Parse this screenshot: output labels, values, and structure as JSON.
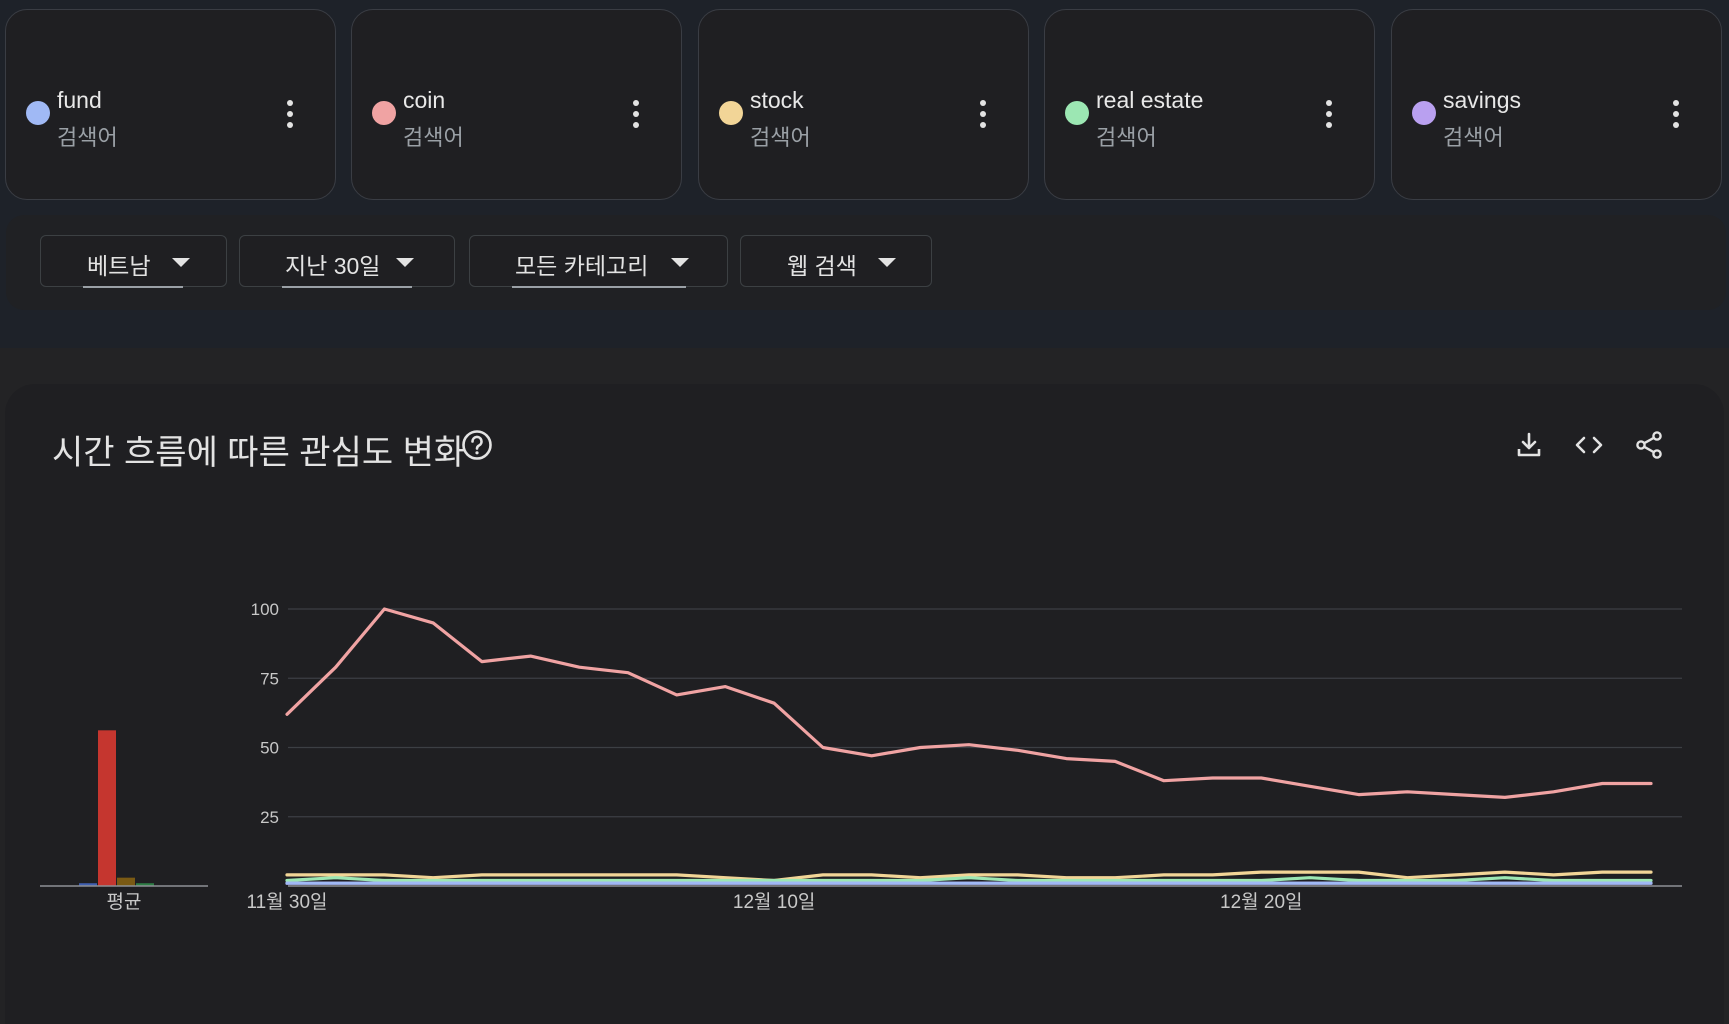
{
  "terms": [
    {
      "name": "fund",
      "sub": "검색어",
      "color": "#a0b9f5"
    },
    {
      "name": "coin",
      "sub": "검색어",
      "color": "#f0a3a3"
    },
    {
      "name": "stock",
      "sub": "검색어",
      "color": "#f2d597"
    },
    {
      "name": "real estate",
      "sub": "검색어",
      "color": "#9ce7b3"
    },
    {
      "name": "savings",
      "sub": "검색어",
      "color": "#b9a0f0"
    }
  ],
  "filters": {
    "region": "베트남",
    "time": "지난 30일",
    "category": "모든 카테고리",
    "search_type": "웹 검색"
  },
  "chart_header": {
    "title": "시간 흐름에 따른 관심도 변화",
    "help_icon": "help-circle-icon",
    "actions": [
      "download-icon",
      "embed-code-icon",
      "share-icon"
    ]
  },
  "chart_data": [
    {
      "type": "bar",
      "categories": [
        "fund",
        "coin",
        "stock",
        "real estate",
        "savings"
      ],
      "values": [
        1,
        56,
        3,
        1,
        0
      ],
      "colors": [
        "#3f5fb0",
        "#c5362f",
        "#7a5a14",
        "#2e7d45",
        "#5b3f99"
      ],
      "xlabel": "평균",
      "ylim": [
        0,
        100
      ]
    },
    {
      "type": "line",
      "x": [
        "11월 30일",
        "12월 1일",
        "12월 2일",
        "12월 3일",
        "12월 4일",
        "12월 5일",
        "12월 6일",
        "12월 7일",
        "12월 8일",
        "12월 9일",
        "12월 10일",
        "12월 11일",
        "12월 12일",
        "12월 13일",
        "12월 14일",
        "12월 15일",
        "12월 16일",
        "12월 17일",
        "12월 18일",
        "12월 19일",
        "12월 20일",
        "12월 21일",
        "12월 22일",
        "12월 23일",
        "12월 24일",
        "12월 25일",
        "12월 26일",
        "12월 27일",
        "12월 28일"
      ],
      "x_tick_labels": [
        "11월 30일",
        "12월 10일",
        "12월 20일"
      ],
      "y_ticks": [
        25,
        50,
        75,
        100
      ],
      "ylim": [
        0,
        100
      ],
      "grid": true,
      "series": [
        {
          "name": "fund",
          "color": "#a0b9f5",
          "values": [
            1,
            1,
            1,
            1,
            1,
            1,
            1,
            1,
            1,
            1,
            1,
            1,
            1,
            1,
            1,
            1,
            1,
            1,
            1,
            1,
            1,
            1,
            1,
            1,
            1,
            1,
            1,
            1,
            1
          ]
        },
        {
          "name": "coin",
          "color": "#f0a3a3",
          "values": [
            62,
            79,
            100,
            95,
            81,
            83,
            79,
            77,
            69,
            72,
            66,
            50,
            47,
            50,
            51,
            49,
            46,
            45,
            38,
            39,
            39,
            36,
            33,
            34,
            33,
            32,
            34,
            37,
            37
          ]
        },
        {
          "name": "stock",
          "color": "#f2d597",
          "values": [
            4,
            4,
            4,
            3,
            4,
            4,
            4,
            4,
            4,
            3,
            2,
            4,
            4,
            3,
            4,
            4,
            3,
            3,
            4,
            4,
            5,
            5,
            5,
            3,
            4,
            5,
            4,
            5,
            5
          ]
        },
        {
          "name": "real estate",
          "color": "#9ce7b3",
          "values": [
            2,
            3,
            2,
            2,
            2,
            2,
            2,
            2,
            2,
            2,
            2,
            2,
            2,
            2,
            3,
            2,
            2,
            2,
            2,
            2,
            2,
            3,
            2,
            2,
            2,
            3,
            2,
            2,
            2
          ]
        },
        {
          "name": "savings",
          "color": "#b9a0f0",
          "values": [
            1,
            1,
            1,
            1,
            1,
            1,
            1,
            1,
            1,
            1,
            1,
            1,
            1,
            1,
            1,
            1,
            1,
            1,
            1,
            1,
            1,
            1,
            1,
            1,
            1,
            1,
            1,
            1,
            1
          ]
        }
      ]
    }
  ]
}
